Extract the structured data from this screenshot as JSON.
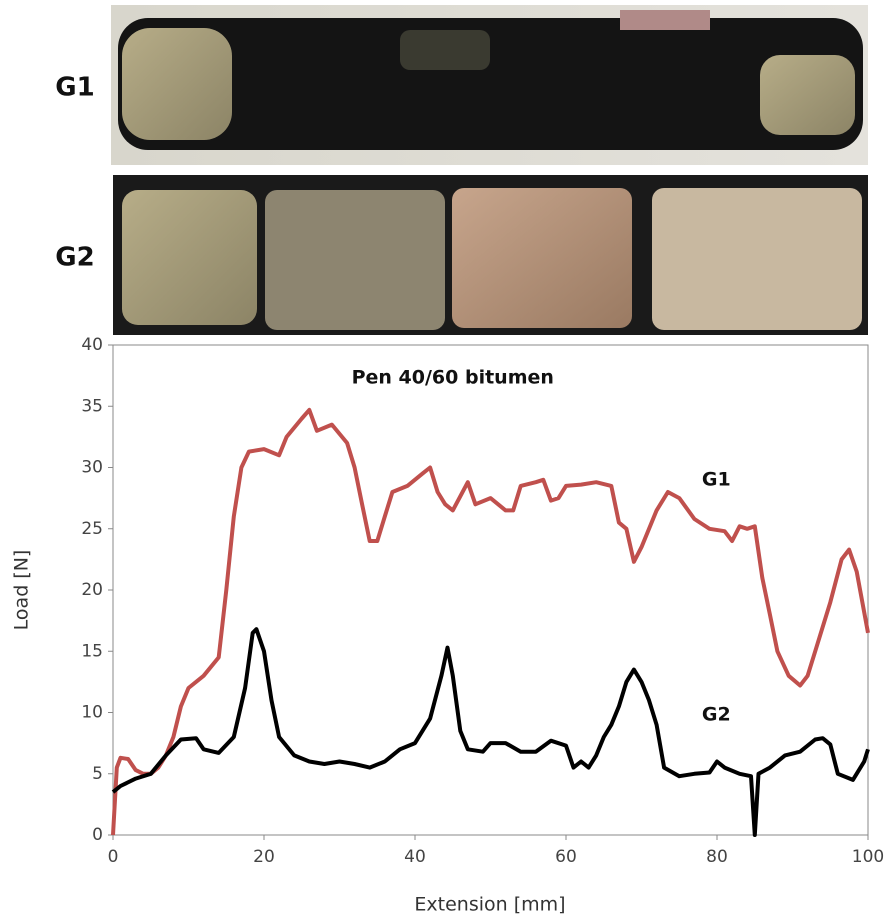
{
  "photos": [
    {
      "label": "G1"
    },
    {
      "label": "G2"
    }
  ],
  "chart_data": {
    "type": "line",
    "title": "Pen 40/60 bitumen",
    "x_label": "Extension [mm]",
    "y_label": "Load [N]",
    "xlim": [
      0,
      100
    ],
    "xticks": [
      0,
      20,
      40,
      60,
      80,
      100
    ],
    "ylim": [
      0,
      40
    ],
    "yticks": [
      0,
      5,
      10,
      15,
      20,
      25,
      30,
      35,
      40
    ],
    "grid": false,
    "series": [
      {
        "name": "G1",
        "color": "#c0504d",
        "x": [
          0,
          0.5,
          1,
          2,
          3,
          4,
          5,
          6,
          7,
          8,
          9,
          10,
          12,
          14,
          15,
          16,
          17,
          18,
          20,
          22,
          23,
          25,
          26,
          27,
          29,
          31,
          32,
          33,
          34,
          35,
          36,
          37,
          39,
          41,
          42,
          43,
          44,
          45,
          47,
          48,
          50,
          52,
          53,
          54,
          56,
          57,
          58,
          59,
          60,
          62,
          64,
          66,
          67,
          68,
          69,
          70,
          72,
          73.5,
          75,
          77,
          79,
          81,
          82,
          83,
          84,
          85,
          86,
          87,
          88,
          89.5,
          91,
          92,
          93,
          95,
          96.5,
          97.5,
          98.5,
          100
        ],
        "values": [
          0,
          5.5,
          6.3,
          6.2,
          5.3,
          5.0,
          5.0,
          5.5,
          6.5,
          8.0,
          10.5,
          12,
          13,
          14.5,
          20,
          26,
          30,
          31.3,
          31.5,
          31.0,
          32.5,
          34,
          34.7,
          33,
          33.5,
          32,
          30,
          27,
          24,
          24,
          26,
          28,
          28.5,
          29.5,
          30,
          28,
          27,
          26.5,
          28.8,
          27,
          27.5,
          26.5,
          26.5,
          28.5,
          28.8,
          29,
          27.3,
          27.5,
          28.5,
          28.6,
          28.8,
          28.5,
          25.5,
          25,
          22.3,
          23.5,
          26.5,
          28,
          27.5,
          25.8,
          25,
          24.8,
          24,
          25.2,
          25,
          25.2,
          21,
          18,
          15,
          13,
          12.2,
          13,
          15,
          19,
          22.5,
          23.3,
          21.5,
          16.5
        ]
      },
      {
        "name": "G2",
        "color": "#000000",
        "x": [
          0,
          1,
          3,
          5,
          7,
          9,
          11,
          12,
          14,
          16,
          17.5,
          18.5,
          19,
          20,
          21,
          22,
          24,
          26,
          28,
          30,
          32,
          34,
          36,
          38,
          40,
          42,
          43.5,
          44.3,
          45,
          46,
          47,
          49,
          50,
          52,
          54,
          56,
          58,
          60,
          61,
          62,
          63,
          64,
          65,
          66,
          67,
          68,
          69,
          70,
          71,
          72,
          73,
          75,
          77,
          79,
          80,
          81,
          83,
          84.5,
          85,
          85.5,
          87,
          89,
          91,
          93,
          94,
          95,
          96,
          98,
          99.5,
          100
        ],
        "values": [
          3.5,
          4,
          4.6,
          5,
          6.5,
          7.8,
          7.9,
          7,
          6.7,
          8,
          12,
          16.5,
          16.8,
          15,
          11,
          8,
          6.5,
          6,
          5.8,
          6,
          5.8,
          5.5,
          6,
          7,
          7.5,
          9.5,
          13,
          15.3,
          13,
          8.5,
          7,
          6.8,
          7.5,
          7.5,
          6.8,
          6.8,
          7.7,
          7.3,
          5.5,
          6,
          5.5,
          6.5,
          8,
          9,
          10.5,
          12.5,
          13.5,
          12.5,
          11,
          9,
          5.5,
          4.8,
          5,
          5.1,
          6,
          5.5,
          5,
          4.8,
          0,
          5,
          5.5,
          6.5,
          6.8,
          7.8,
          7.9,
          7.4,
          5,
          4.5,
          6,
          7
        ]
      }
    ],
    "series_label_pos": [
      [
        78,
        29
      ],
      [
        78,
        9.8
      ]
    ],
    "title_pos": [
      45,
      37.3
    ]
  }
}
